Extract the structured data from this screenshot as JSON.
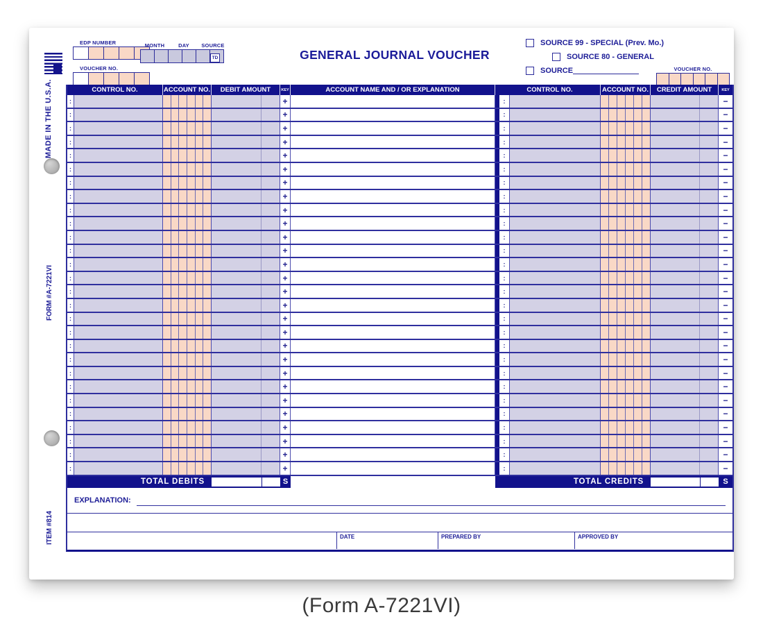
{
  "caption": "(Form A-7221VI)",
  "form": {
    "title": "GENERAL JOURNAL VOUCHER",
    "side": {
      "made_in_usa": "MADE IN THE U.S.A.",
      "form_number": "FORM #A-7221VI",
      "item_number": "ITEM #814"
    },
    "header": {
      "edp_label": "EDP NUMBER",
      "voucher_no_label": "VOUCHER NO.",
      "month_label": "MONTH",
      "day_label": "DAY",
      "source_label": "SOURCE",
      "td_label": "TD",
      "source_options": [
        "SOURCE 99 - SPECIAL (Prev. Mo.)",
        "SOURCE 80 - GENERAL",
        "SOURCE"
      ],
      "right_voucher_no_label": "VOUCHER NO."
    },
    "table": {
      "rows": 28,
      "row_marker": ":",
      "left": {
        "control": "CONTROL NO.",
        "account": "ACCOUNT NO.",
        "amount": "DEBIT AMOUNT",
        "key": "KEY",
        "key_symbol": "+",
        "total_label": "TOTAL DEBITS"
      },
      "middle": {
        "name": "ACCOUNT NAME AND / OR EXPLANATION"
      },
      "right": {
        "control": "CONTROL NO.",
        "account": "ACCOUNT NO.",
        "amount": "CREDIT AMOUNT",
        "key": "KEY",
        "key_symbol": "−",
        "total_label": "TOTAL CREDITS"
      },
      "total_key_symbol": "S"
    },
    "footer": {
      "explanation_label": "EXPLANATION:",
      "date_label": "DATE",
      "prepared_by_label": "PREPARED BY",
      "approved_by_label": "APPROVED BY"
    },
    "colors": {
      "navy": "#12128c",
      "lavender": "#d3d1e5",
      "pink": "#f9d8c6",
      "box_lavender": "#c9c9de",
      "line": "#2f2f9e"
    }
  }
}
